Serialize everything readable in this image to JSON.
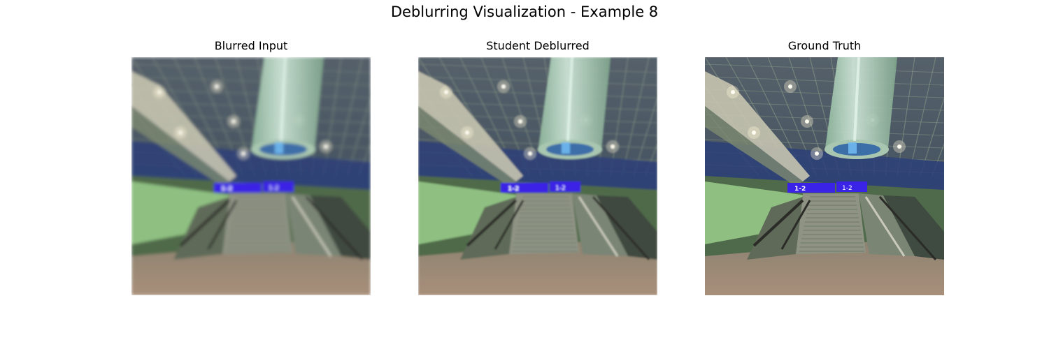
{
  "figure": {
    "title": "Deblurring Visualization - Example 8"
  },
  "panels": [
    {
      "title": "Blurred Input",
      "blur": 2.2
    },
    {
      "title": "Student Deblurred",
      "blur": 1.4
    },
    {
      "title": "Ground Truth",
      "blur": 0
    }
  ],
  "signs": [
    "1-2",
    "1-2"
  ],
  "colors": {
    "ceiling": "#3a4a5a",
    "wall_band": "#2c3f78",
    "green_glow": "#9fd68f",
    "floor": "#a88f7a",
    "sign": "#3a22e6",
    "tube": "#cfe6d8"
  }
}
